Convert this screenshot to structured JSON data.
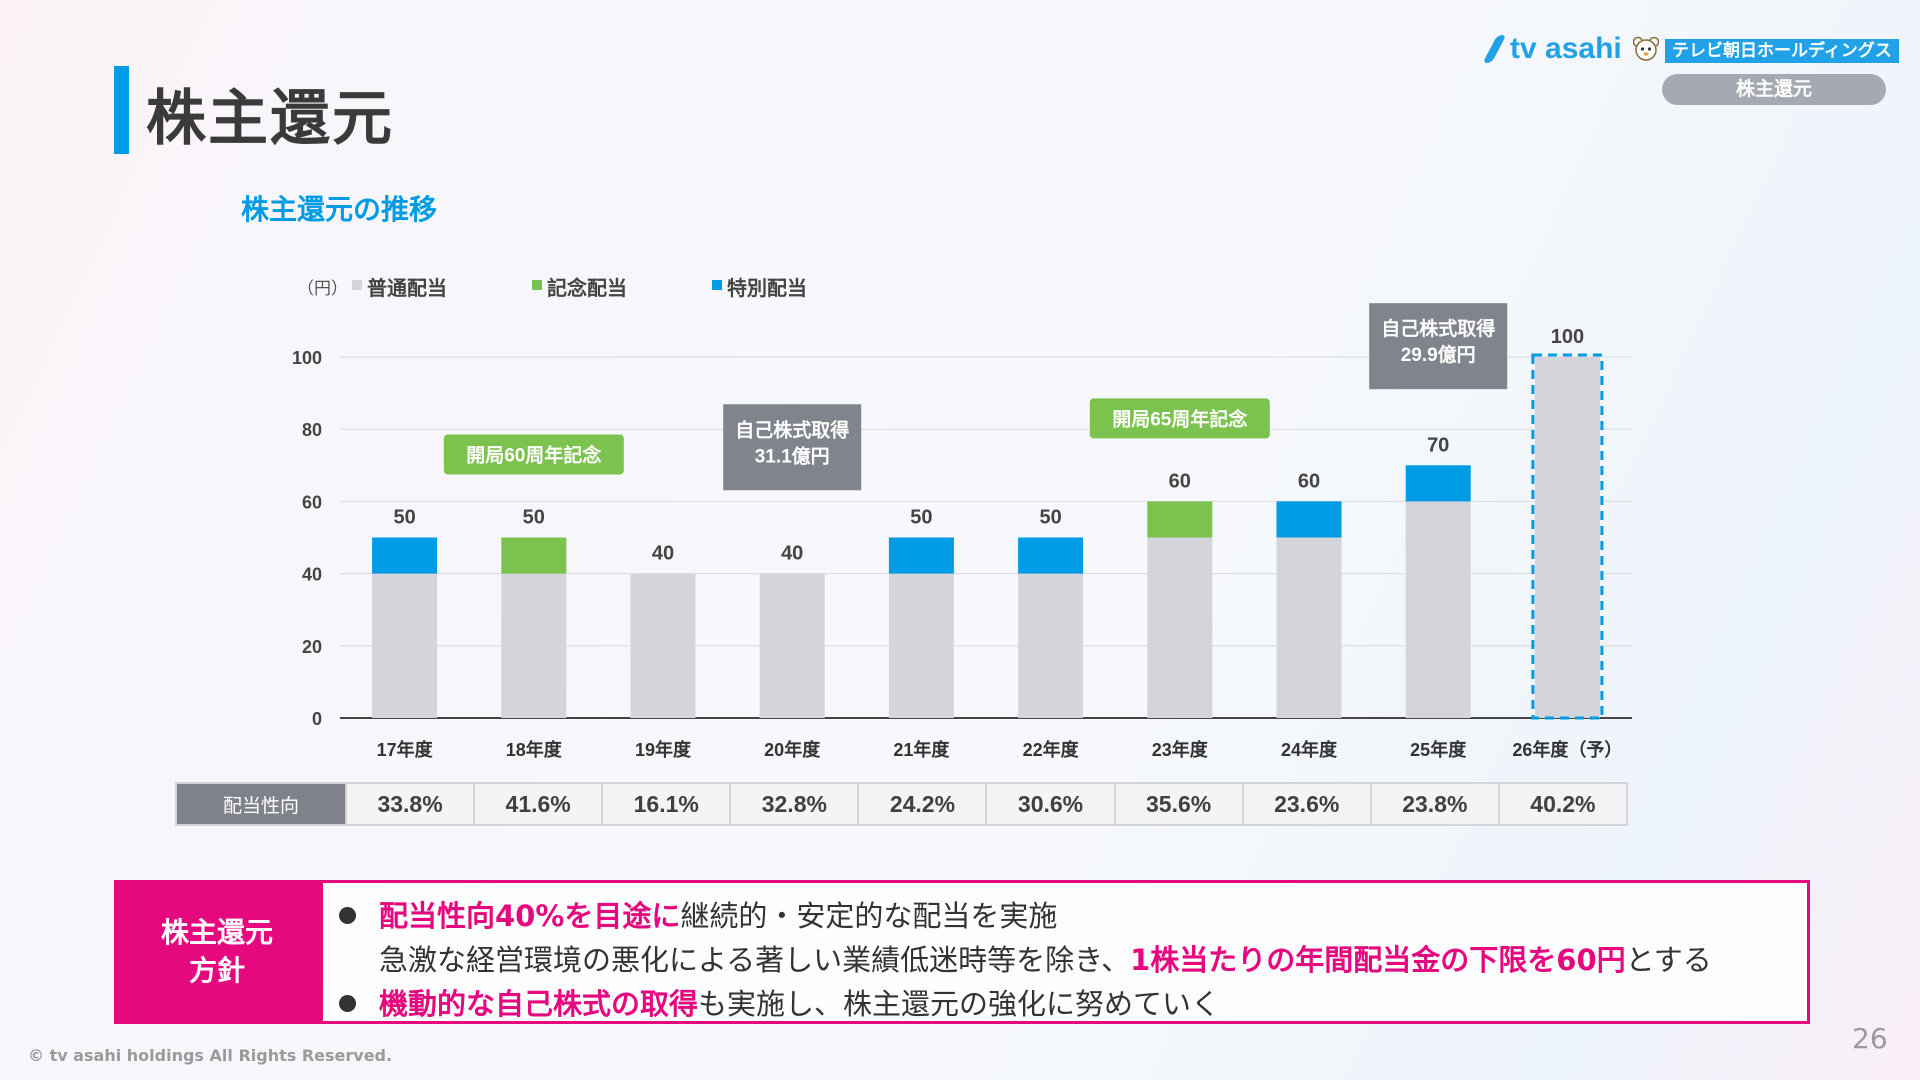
{
  "header": {
    "page_title": "株主還元",
    "section_pill": "株主還元",
    "logo": {
      "brand": "tv asahi",
      "holdings": "テレビ朝日ホールディングス",
      "mascot_icon": "mascot-icon",
      "accent": "#21a1e8"
    }
  },
  "subtitle": "株主還元の推移",
  "chart_data": {
    "type": "bar",
    "stacked": true,
    "unit_label": "（円）",
    "categories": [
      "17年度",
      "18年度",
      "19年度",
      "20年度",
      "21年度",
      "22年度",
      "23年度",
      "24年度",
      "25年度",
      "26年度（予）"
    ],
    "series": [
      {
        "name": "普通配当",
        "color": "#d4d5da",
        "values": [
          40,
          40,
          40,
          40,
          40,
          40,
          50,
          50,
          60,
          100
        ]
      },
      {
        "name": "記念配当",
        "color": "#7cc24f",
        "values": [
          0,
          10,
          0,
          0,
          0,
          0,
          10,
          0,
          0,
          0
        ]
      },
      {
        "name": "特別配当",
        "color": "#009be5",
        "values": [
          10,
          0,
          0,
          0,
          10,
          10,
          0,
          10,
          10,
          0
        ]
      }
    ],
    "totals": [
      "50",
      "50",
      "40",
      "40",
      "50",
      "50",
      "60",
      "60",
      "70",
      "100"
    ],
    "forecast_index": 9,
    "ylim": [
      0,
      100
    ],
    "yticks": [
      "0",
      "20",
      "40",
      "60",
      "80",
      "100"
    ],
    "grid": true,
    "legend_position": "top-left",
    "annotations": [
      {
        "text": "開局60周年記念",
        "style": "green",
        "cat": 1,
        "level": 73
      },
      {
        "text": "自己株式取得\n31.1億円",
        "style": "gray",
        "cat": 3,
        "level": 75
      },
      {
        "text": "開局65周年記念",
        "style": "green",
        "cat": 6,
        "level": 83
      },
      {
        "text": "自己株式取得\n29.9億円",
        "style": "gray",
        "cat": 8,
        "level": 103
      }
    ]
  },
  "payout_table": {
    "label": "配当性向",
    "values": [
      "33.8%",
      "41.6%",
      "16.1%",
      "32.8%",
      "24.2%",
      "30.6%",
      "35.6%",
      "23.6%",
      "23.8%",
      "40.2%"
    ]
  },
  "policy": {
    "label_line1": "株主還元",
    "label_line2": "方針",
    "line1_em": "配当性向40%を目途に",
    "line1_rest": "継続的・安定的な配当を実施",
    "line2_pre": "急激な経営環境の悪化による著しい業績低迷時等を除き、",
    "line2_em": "1株当たりの年間配当金の下限を60円",
    "line2_post": "とする",
    "line3_em": "機動的な自己株式の取得",
    "line3_rest": "も実施し、株主還元の強化に努めていく"
  },
  "footer": {
    "copyright": "© tv asahi holdings All Rights Reserved.",
    "page_number": "26"
  },
  "colors": {
    "accent_blue": "#009be5",
    "magenta": "#e6087f",
    "annotation_gray": "#80848c",
    "annotation_green": "#7cc24f"
  }
}
